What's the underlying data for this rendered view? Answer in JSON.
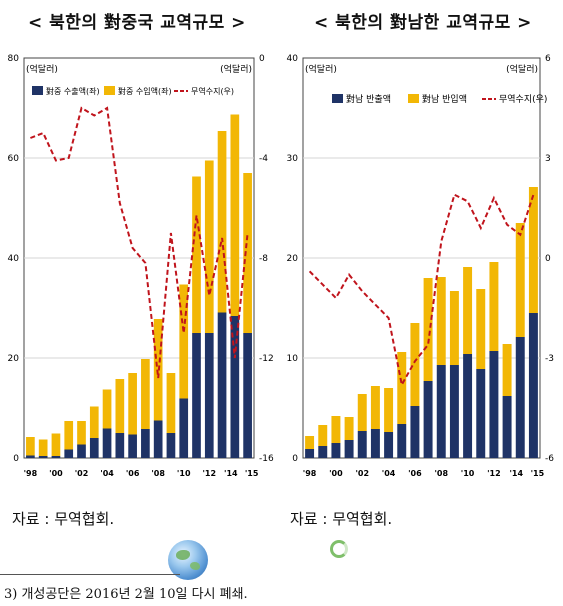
{
  "titles": {
    "left": "< 북한의 對중국 교역규모 >",
    "right": "< 북한의 對남한 교역규모 >"
  },
  "colors": {
    "export": "#1f3366",
    "import": "#f2b705",
    "balance": "#c0141c"
  },
  "sources": {
    "left": "자료 : 무역협회.",
    "right": "자료 : 무역협회."
  },
  "footnote": "3) 개성공단은 2016년 2월 10일 다시 폐쇄.",
  "chart_data": [
    {
      "type": "bar",
      "stacked": true,
      "ylabel_left": "(억달러)",
      "ylabel_right": "(억달러)",
      "ylim_left": [
        0,
        80
      ],
      "yticks_left": [
        "0",
        "20",
        "40",
        "60",
        "80"
      ],
      "ylim_right": [
        -16,
        0
      ],
      "yticks_right": [
        "-16",
        "-12",
        "-8",
        "-4",
        "0"
      ],
      "xtick_labels": [
        "'98",
        "'00",
        "'02",
        "'04",
        "'06",
        "'08",
        "'10",
        "'12",
        "'14",
        "'15"
      ],
      "categories": [
        "1998",
        "1999",
        "2000",
        "2001",
        "2002",
        "2003",
        "2004",
        "2005",
        "2006",
        "2007",
        "2008",
        "2009",
        "2010",
        "2011",
        "2012",
        "2013",
        "2014",
        "2015"
      ],
      "series": [
        {
          "name": "對중 수출액(좌)",
          "values": [
            0.5,
            0.4,
            0.4,
            1.7,
            2.7,
            4.0,
            5.9,
            5.0,
            4.7,
            5.8,
            7.5,
            5.0,
            11.9,
            25.0,
            25.0,
            29.1,
            28.4,
            25.0
          ]
        },
        {
          "name": "對중 수입액(좌)",
          "values": [
            3.7,
            3.3,
            4.5,
            5.7,
            4.7,
            6.3,
            7.8,
            10.8,
            12.3,
            14.0,
            20.3,
            12.0,
            22.8,
            31.3,
            34.5,
            36.3,
            40.3,
            32.0
          ]
        },
        {
          "name": "무역수지(우)",
          "axis": "right",
          "values": [
            -3.2,
            -3.0,
            -4.1,
            -4.0,
            -2.0,
            -2.3,
            -2.0,
            -5.8,
            -7.6,
            -8.2,
            -12.8,
            -7.0,
            -11.0,
            -6.3,
            -9.5,
            -7.2,
            -12.0,
            -7.0
          ]
        }
      ]
    },
    {
      "type": "bar",
      "stacked": true,
      "ylabel_left": "(억달러)",
      "ylabel_right": "(억달러)",
      "ylim_left": [
        0,
        40
      ],
      "yticks_left": [
        "0",
        "10",
        "20",
        "30",
        "40"
      ],
      "ylim_right": [
        -6,
        6
      ],
      "yticks_right": [
        "-6",
        "-3",
        "0",
        "3",
        "6"
      ],
      "xtick_labels": [
        "'98",
        "'00",
        "'02",
        "'04",
        "'06",
        "'08",
        "'10",
        "'12",
        "'14",
        "'15"
      ],
      "categories": [
        "1998",
        "1999",
        "2000",
        "2001",
        "2002",
        "2003",
        "2004",
        "2005",
        "2006",
        "2007",
        "2008",
        "2009",
        "2010",
        "2011",
        "2012",
        "2013",
        "2014",
        "2015"
      ],
      "series": [
        {
          "name": "對남 반출액",
          "values": [
            0.9,
            1.2,
            1.5,
            1.8,
            2.7,
            2.9,
            2.6,
            3.4,
            5.2,
            7.7,
            9.3,
            9.3,
            10.4,
            8.9,
            10.7,
            6.2,
            12.1,
            14.5
          ]
        },
        {
          "name": "對남 반입액",
          "values": [
            1.3,
            2.1,
            2.7,
            2.3,
            3.7,
            4.3,
            4.4,
            7.2,
            8.3,
            10.3,
            8.8,
            7.4,
            8.7,
            8.0,
            8.9,
            5.2,
            11.4,
            12.6
          ]
        },
        {
          "name": "무역수지(우)",
          "axis": "right",
          "values": [
            -0.4,
            -0.8,
            -1.2,
            -0.5,
            -1.0,
            -1.4,
            -1.8,
            -3.8,
            -3.1,
            -2.6,
            0.5,
            1.9,
            1.7,
            0.9,
            1.8,
            1.0,
            0.7,
            1.9
          ]
        }
      ]
    }
  ]
}
